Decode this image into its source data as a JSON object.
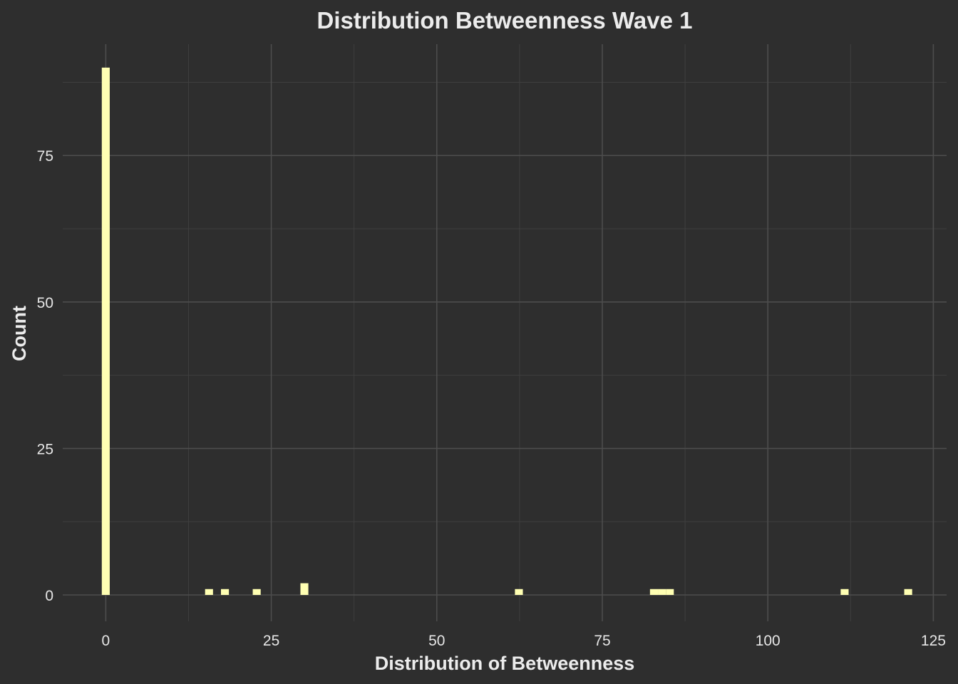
{
  "chart_data": {
    "type": "bar",
    "subtype": "histogram",
    "title": "Distribution Betweenness Wave 1",
    "xlabel": "Distribution of Betweenness",
    "ylabel": "Count",
    "xlim": [
      -6.5,
      127
    ],
    "ylim": [
      -4.5,
      94
    ],
    "x_ticks": [
      0,
      25,
      50,
      75,
      100,
      125
    ],
    "y_ticks": [
      0,
      25,
      50,
      75
    ],
    "bin_width": 1.2,
    "grid": true,
    "bins": [
      {
        "x": 0,
        "count": 90
      },
      {
        "x": 15.6,
        "count": 1
      },
      {
        "x": 18,
        "count": 1
      },
      {
        "x": 22.8,
        "count": 1
      },
      {
        "x": 30,
        "count": 2
      },
      {
        "x": 62.4,
        "count": 1
      },
      {
        "x": 82.8,
        "count": 1
      },
      {
        "x": 84,
        "count": 1
      },
      {
        "x": 85.2,
        "count": 1
      },
      {
        "x": 111.6,
        "count": 1
      },
      {
        "x": 121.2,
        "count": 1
      }
    ],
    "colors": {
      "background": "#2e2e2e",
      "bar": "#ffffb3"
    }
  }
}
